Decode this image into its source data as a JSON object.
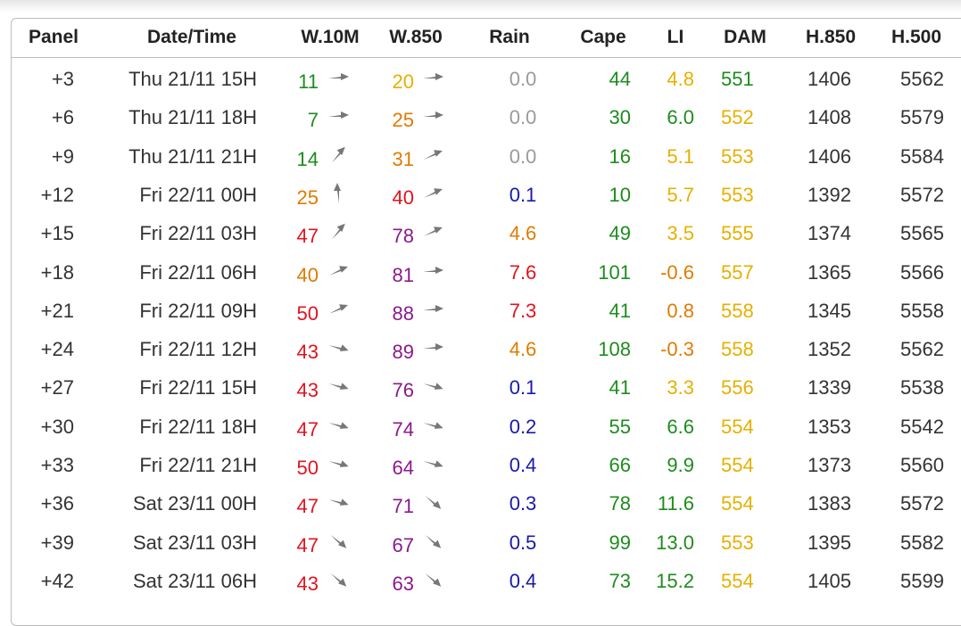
{
  "table": {
    "headers": [
      "Panel",
      "Date/Time",
      "W.10M",
      "W.850",
      "Rain",
      "Cape",
      "LI",
      "DAM",
      "H.850",
      "H.500"
    ],
    "rows": [
      [
        "+3",
        "Thu 21/11 15H",
        "11",
        "20",
        "0.0",
        "44",
        "4.8",
        "551",
        "1406",
        "5562"
      ],
      [
        "+6",
        "Thu 21/11 18H",
        "7",
        "25",
        "0.0",
        "30",
        "6.0",
        "552",
        "1408",
        "5579"
      ],
      [
        "+9",
        "Thu 21/11 21H",
        "14",
        "31",
        "0.0",
        "16",
        "5.1",
        "553",
        "1406",
        "5584"
      ],
      [
        "+12",
        "Fri 22/11 00H",
        "25",
        "40",
        "0.1",
        "10",
        "5.7",
        "553",
        "1392",
        "5572"
      ],
      [
        "+15",
        "Fri 22/11 03H",
        "47",
        "78",
        "4.6",
        "49",
        "3.5",
        "555",
        "1374",
        "5565"
      ],
      [
        "+18",
        "Fri 22/11 06H",
        "40",
        "81",
        "7.6",
        "101",
        "-0.6",
        "557",
        "1365",
        "5566"
      ],
      [
        "+21",
        "Fri 22/11 09H",
        "50",
        "88",
        "7.3",
        "41",
        "0.8",
        "558",
        "1345",
        "5558"
      ],
      [
        "+24",
        "Fri 22/11 12H",
        "43",
        "89",
        "4.6",
        "108",
        "-0.3",
        "558",
        "1352",
        "5562"
      ],
      [
        "+27",
        "Fri 22/11 15H",
        "43",
        "76",
        "0.1",
        "41",
        "3.3",
        "556",
        "1339",
        "5538"
      ],
      [
        "+30",
        "Fri 22/11 18H",
        "47",
        "74",
        "0.2",
        "55",
        "6.6",
        "554",
        "1353",
        "5542"
      ],
      [
        "+33",
        "Fri 22/11 21H",
        "50",
        "64",
        "0.4",
        "66",
        "9.9",
        "554",
        "1373",
        "5560"
      ],
      [
        "+36",
        "Sat 23/11 00H",
        "47",
        "71",
        "0.3",
        "78",
        "11.6",
        "554",
        "1383",
        "5572"
      ],
      [
        "+39",
        "Sat 23/11 03H",
        "47",
        "67",
        "0.5",
        "99",
        "13.0",
        "553",
        "1395",
        "5582"
      ],
      [
        "+42",
        "Sat 23/11 06H",
        "43",
        "63",
        "0.4",
        "73",
        "15.2",
        "554",
        "1405",
        "5599"
      ]
    ],
    "colors": [
      [
        null,
        null,
        "#1e8c1e",
        "#e6b000",
        "#9a9a9a",
        "#1e8c1e",
        "#e6b000",
        "#1e8c1e",
        null,
        null
      ],
      [
        null,
        null,
        "#1e8c1e",
        "#e07b00",
        "#9a9a9a",
        "#1e8c1e",
        "#1e8c1e",
        "#e6b000",
        null,
        null
      ],
      [
        null,
        null,
        "#1e8c1e",
        "#e07b00",
        "#9a9a9a",
        "#1e8c1e",
        "#e6b000",
        "#e6b000",
        null,
        null
      ],
      [
        null,
        null,
        "#e07b00",
        "#e0141e",
        "#1a1aaa",
        "#1e8c1e",
        "#e6b000",
        "#e6b000",
        null,
        null
      ],
      [
        null,
        null,
        "#e0141e",
        "#8b1a8b",
        "#e07b00",
        "#1e8c1e",
        "#e6b000",
        "#e6b000",
        null,
        null
      ],
      [
        null,
        null,
        "#e07b00",
        "#8b1a8b",
        "#e0141e",
        "#1e8c1e",
        "#e07b00",
        "#e6b000",
        null,
        null
      ],
      [
        null,
        null,
        "#e0141e",
        "#8b1a8b",
        "#e0141e",
        "#1e8c1e",
        "#e07b00",
        "#e6b000",
        null,
        null
      ],
      [
        null,
        null,
        "#e0141e",
        "#8b1a8b",
        "#e07b00",
        "#1e8c1e",
        "#e07b00",
        "#e6b000",
        null,
        null
      ],
      [
        null,
        null,
        "#e0141e",
        "#8b1a8b",
        "#1a1aaa",
        "#1e8c1e",
        "#e6b000",
        "#e6b000",
        null,
        null
      ],
      [
        null,
        null,
        "#e0141e",
        "#8b1a8b",
        "#1a1aaa",
        "#1e8c1e",
        "#1e8c1e",
        "#e6b000",
        null,
        null
      ],
      [
        null,
        null,
        "#e0141e",
        "#8b1a8b",
        "#1a1aaa",
        "#1e8c1e",
        "#1e8c1e",
        "#e6b000",
        null,
        null
      ],
      [
        null,
        null,
        "#e0141e",
        "#8b1a8b",
        "#1a1aaa",
        "#1e8c1e",
        "#1e8c1e",
        "#e6b000",
        null,
        null
      ],
      [
        null,
        null,
        "#e0141e",
        "#8b1a8b",
        "#1a1aaa",
        "#1e8c1e",
        "#1e8c1e",
        "#e6b000",
        null,
        null
      ],
      [
        null,
        null,
        "#e0141e",
        "#8b1a8b",
        "#1a1aaa",
        "#1e8c1e",
        "#1e8c1e",
        "#e6b000",
        null,
        null
      ]
    ],
    "w10m_dir": [
      0,
      0,
      -45,
      -90,
      -45,
      -20,
      -20,
      20,
      20,
      20,
      20,
      20,
      45,
      45
    ],
    "w850_dir": [
      0,
      0,
      -20,
      -20,
      -20,
      0,
      0,
      0,
      20,
      20,
      20,
      45,
      45,
      45
    ]
  }
}
